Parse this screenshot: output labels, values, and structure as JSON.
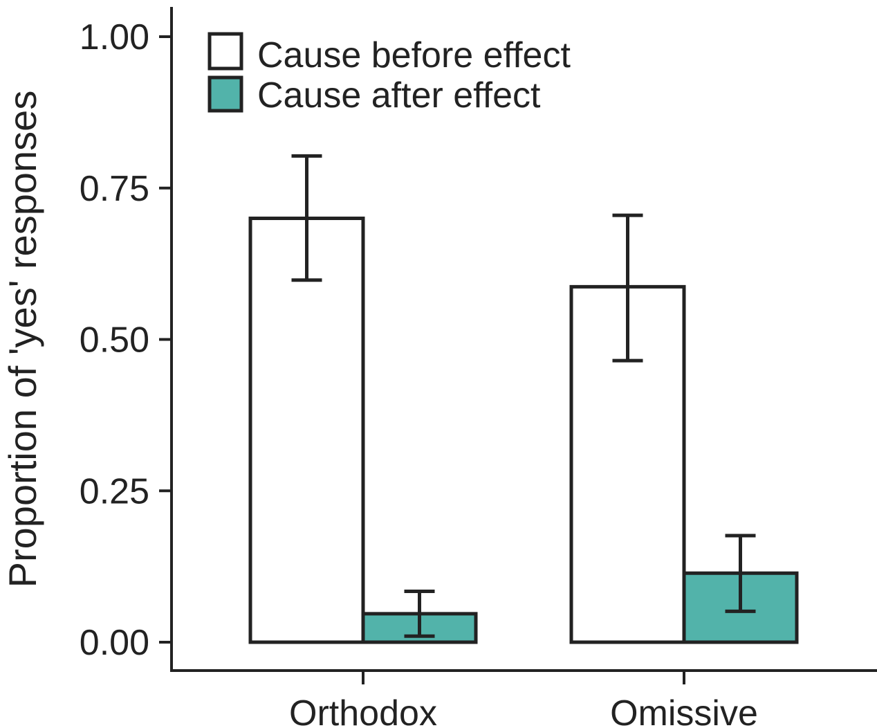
{
  "chart_data": {
    "type": "bar",
    "title": "",
    "xlabel": "",
    "ylabel": "Proportion of 'yes' responses",
    "ylim": [
      0,
      1.0
    ],
    "yticks": [
      0.0,
      0.25,
      0.5,
      0.75,
      1.0
    ],
    "ytick_labels": [
      "0.00",
      "0.25",
      "0.50",
      "0.75",
      "1.00"
    ],
    "categories": [
      "Orthodox",
      "Omissive"
    ],
    "series": [
      {
        "name": "Cause before effect",
        "color": "#ffffff",
        "values": [
          0.7,
          0.587
        ],
        "error_low": [
          0.598,
          0.465
        ],
        "error_high": [
          0.803,
          0.705
        ]
      },
      {
        "name": "Cause after effect",
        "color": "#52b3aa",
        "values": [
          0.047,
          0.114
        ],
        "error_low": [
          0.01,
          0.051
        ],
        "error_high": [
          0.084,
          0.176
        ]
      }
    ],
    "legend_position": "top-left",
    "grid": false
  }
}
